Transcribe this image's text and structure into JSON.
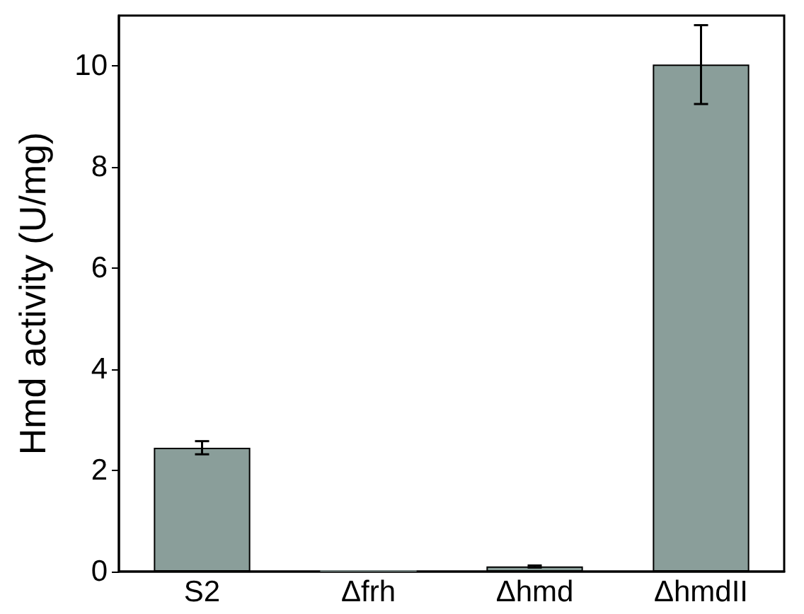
{
  "chart_data": {
    "type": "bar",
    "ylabel": "Hmd activity (U/mg)",
    "categories": [
      "S2",
      "Δfrh",
      "Δhmd",
      "ΔhmdII"
    ],
    "values": [
      2.45,
      0.02,
      0.1,
      10.03
    ],
    "errors": [
      0.13,
      null,
      0.02,
      0.78
    ],
    "color": "#8a9e9a",
    "ylim": [
      0,
      11
    ],
    "yticks": [
      0,
      2,
      4,
      6,
      8,
      10
    ],
    "grid": false
  }
}
